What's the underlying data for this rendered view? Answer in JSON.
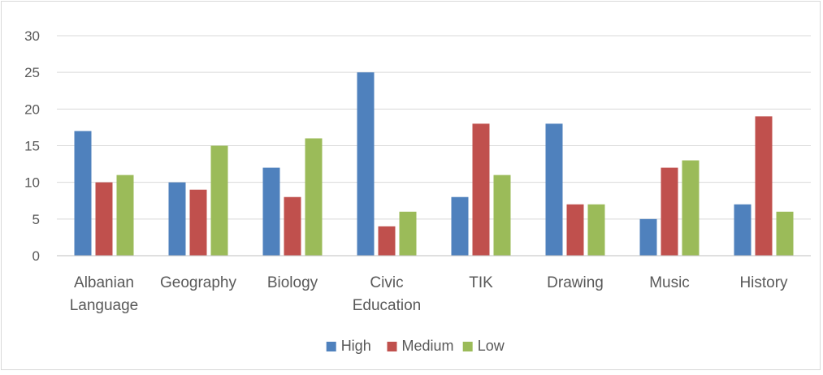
{
  "chart_data": {
    "type": "bar",
    "title": "",
    "xlabel": "",
    "ylabel": "",
    "ylim": [
      0,
      30
    ],
    "yticks": [
      0,
      5,
      10,
      15,
      20,
      25,
      30
    ],
    "grid": true,
    "legend_position": "bottom",
    "categories": [
      [
        "Albanian",
        "Language"
      ],
      [
        "Geography"
      ],
      [
        "Biology"
      ],
      [
        "Civic",
        "Education"
      ],
      [
        "TIK"
      ],
      [
        "Drawing"
      ],
      [
        "Music"
      ],
      [
        "History"
      ]
    ],
    "series": [
      {
        "name": "High",
        "color": "#4f81bd",
        "values": [
          17,
          10,
          12,
          25,
          8,
          18,
          5,
          7
        ]
      },
      {
        "name": "Medium",
        "color": "#c0504d",
        "values": [
          10,
          9,
          8,
          4,
          18,
          7,
          12,
          19
        ]
      },
      {
        "name": "Low",
        "color": "#9bbb59",
        "values": [
          11,
          15,
          16,
          6,
          11,
          7,
          13,
          6
        ]
      }
    ]
  }
}
